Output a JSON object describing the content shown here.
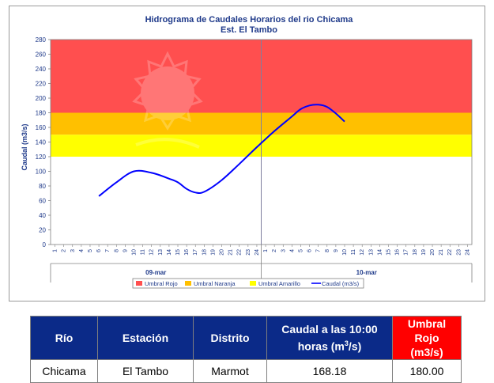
{
  "chart_data": {
    "type": "line",
    "title": "Hidrograma de Caudales Horarios del rio Chicama",
    "subtitle": "Est. El Tambo",
    "ylabel": "Caudal  (m3/s)",
    "ylim": [
      0,
      280
    ],
    "y_ticks": [
      0,
      20,
      40,
      60,
      80,
      100,
      120,
      140,
      160,
      180,
      200,
      220,
      240,
      260,
      280
    ],
    "x_hour_labels": [
      "1",
      "2",
      "3",
      "4",
      "5",
      "6",
      "7",
      "8",
      "9",
      "10",
      "11",
      "12",
      "13",
      "14",
      "15",
      "16",
      "17",
      "18",
      "19",
      "20",
      "21",
      "22",
      "23",
      "24",
      "1",
      "2",
      "3",
      "4",
      "5",
      "6",
      "7",
      "8",
      "9",
      "10",
      "11",
      "12",
      "13",
      "14",
      "15",
      "16",
      "17",
      "18",
      "19",
      "20",
      "21",
      "22",
      "23",
      "24"
    ],
    "days": [
      "09-mar",
      "10-mar"
    ],
    "bands": [
      {
        "name": "Umbral Rojo",
        "from": 180,
        "to": 280,
        "color": "#ff4f4f"
      },
      {
        "name": "Umbral Naranja",
        "from": 150,
        "to": 180,
        "color": "#ffc000"
      },
      {
        "name": "Umbral Amarillo",
        "from": 120,
        "to": 150,
        "color": "#ffff00"
      }
    ],
    "series": [
      {
        "name": "Caudal (m3/s)",
        "color": "#0000ff",
        "x": [
          6,
          8,
          10,
          12,
          14,
          15,
          16,
          17,
          18,
          20,
          22,
          24,
          26,
          28,
          29,
          30,
          31,
          32,
          33,
          34
        ],
        "values": [
          66,
          85,
          100,
          98,
          90,
          85,
          76,
          71,
          72,
          88,
          110,
          133,
          155,
          175,
          185,
          190,
          191,
          188,
          179,
          168
        ]
      }
    ],
    "legend": [
      "Umbral Rojo",
      "Umbral Naranja",
      "Umbral Amarillo",
      "Caudal (m3/s)"
    ],
    "legend_position": "bottom",
    "grid": false
  },
  "table": {
    "headers": [
      "Río",
      "Estación",
      "Distrito",
      "Caudal a las 10:00",
      "horas (m",
      "3",
      "/s)",
      "Umbral Rojo",
      "(m3/s)"
    ],
    "row": [
      "Chicama",
      "El Tambo",
      "Marmot",
      "168.18",
      "180.00"
    ]
  },
  "colors": {
    "header_bg": "#0b2a88",
    "header_red": "#ff0000",
    "series": "#0000ff"
  }
}
